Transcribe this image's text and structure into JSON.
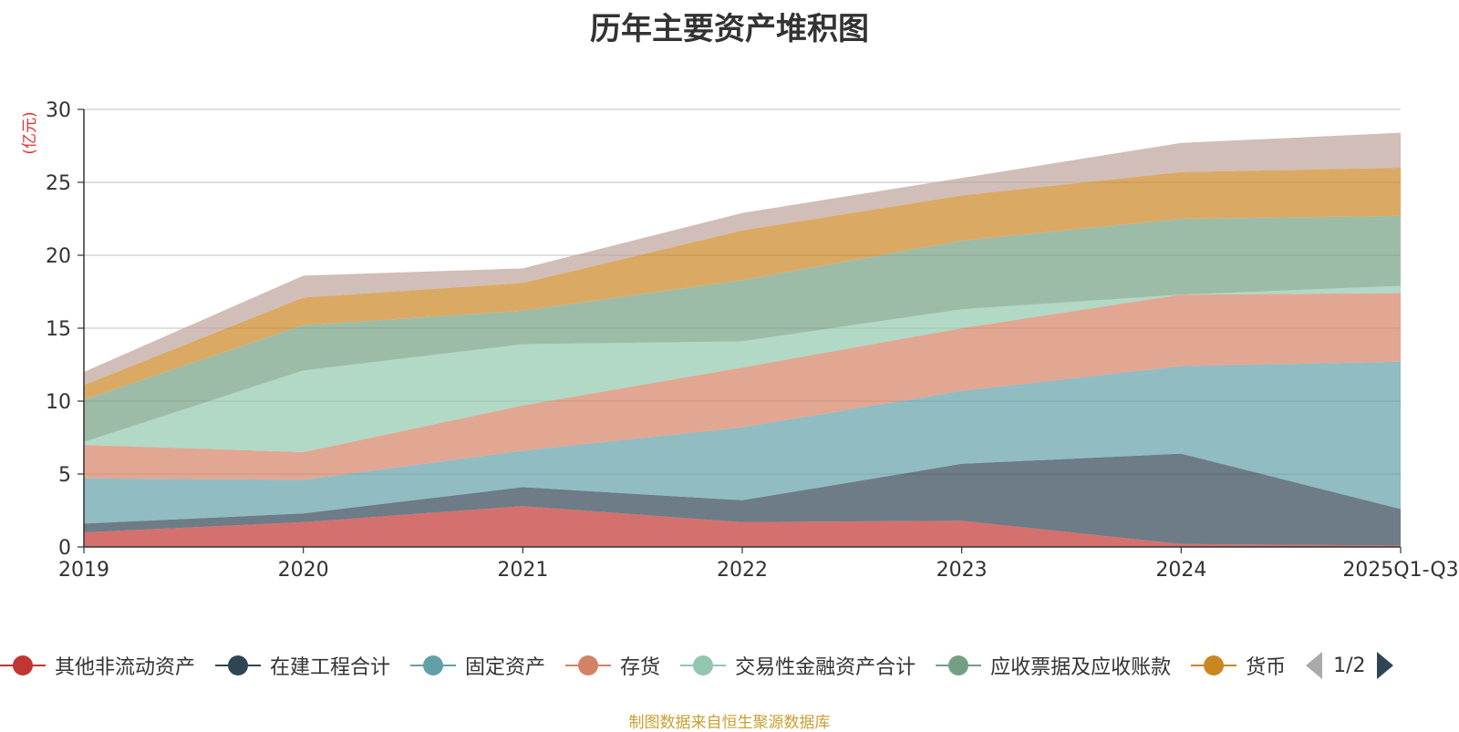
{
  "chart_data": {
    "type": "area",
    "stacked": true,
    "title": "历年主要资产堆积图",
    "ylabel": "(亿元)",
    "xlabel": "",
    "ylim": [
      0,
      30
    ],
    "yticks": [
      0,
      5,
      10,
      15,
      20,
      25,
      30
    ],
    "categories": [
      "2019",
      "2020",
      "2021",
      "2022",
      "2023",
      "2024",
      "2025Q1-Q3"
    ],
    "series": [
      {
        "name": "其他非流动资产",
        "color": "#c23531",
        "values": [
          1.0,
          1.7,
          2.8,
          1.7,
          1.8,
          0.2,
          0.1
        ]
      },
      {
        "name": "在建工程合计",
        "color": "#2f4554",
        "values": [
          0.6,
          0.6,
          1.3,
          1.5,
          3.9,
          6.2,
          2.5
        ]
      },
      {
        "name": "固定资产",
        "color": "#61a0a8",
        "values": [
          3.1,
          2.3,
          2.5,
          5.0,
          5.0,
          6.0,
          10.1
        ]
      },
      {
        "name": "存货",
        "color": "#d48265",
        "values": [
          2.3,
          1.9,
          3.1,
          4.1,
          4.3,
          4.9,
          4.7
        ]
      },
      {
        "name": "交易性金融资产合计",
        "color": "#91c7ae",
        "values": [
          0.2,
          5.6,
          4.2,
          1.8,
          1.3,
          0.0,
          0.5
        ]
      },
      {
        "name": "应收票据及应收账款",
        "color": "#749f83",
        "values": [
          2.9,
          3.1,
          2.3,
          4.2,
          4.7,
          5.2,
          4.8
        ]
      },
      {
        "name": "货币",
        "color": "#ca8622",
        "values": [
          1.0,
          1.9,
          1.9,
          3.4,
          3.1,
          3.2,
          3.3
        ]
      },
      {
        "name": "",
        "color": "#bda29a",
        "values": [
          0.9,
          1.5,
          1.0,
          1.2,
          1.2,
          2.0,
          2.4
        ]
      }
    ],
    "legend_position": "bottom"
  },
  "legend": {
    "items": [
      {
        "name": "其他非流动资产",
        "color": "#c23531"
      },
      {
        "name": "在建工程合计",
        "color": "#2f4554"
      },
      {
        "name": "固定资产",
        "color": "#61a0a8"
      },
      {
        "name": "存货",
        "color": "#d48265"
      },
      {
        "name": "交易性金融资产合计",
        "color": "#91c7ae"
      },
      {
        "name": "应收票据及应收账款",
        "color": "#749f83"
      },
      {
        "name": "货币",
        "color": "#ca8622"
      }
    ],
    "pager_text": "1/2"
  },
  "source_note": "制图数据来自恒生聚源数据库"
}
